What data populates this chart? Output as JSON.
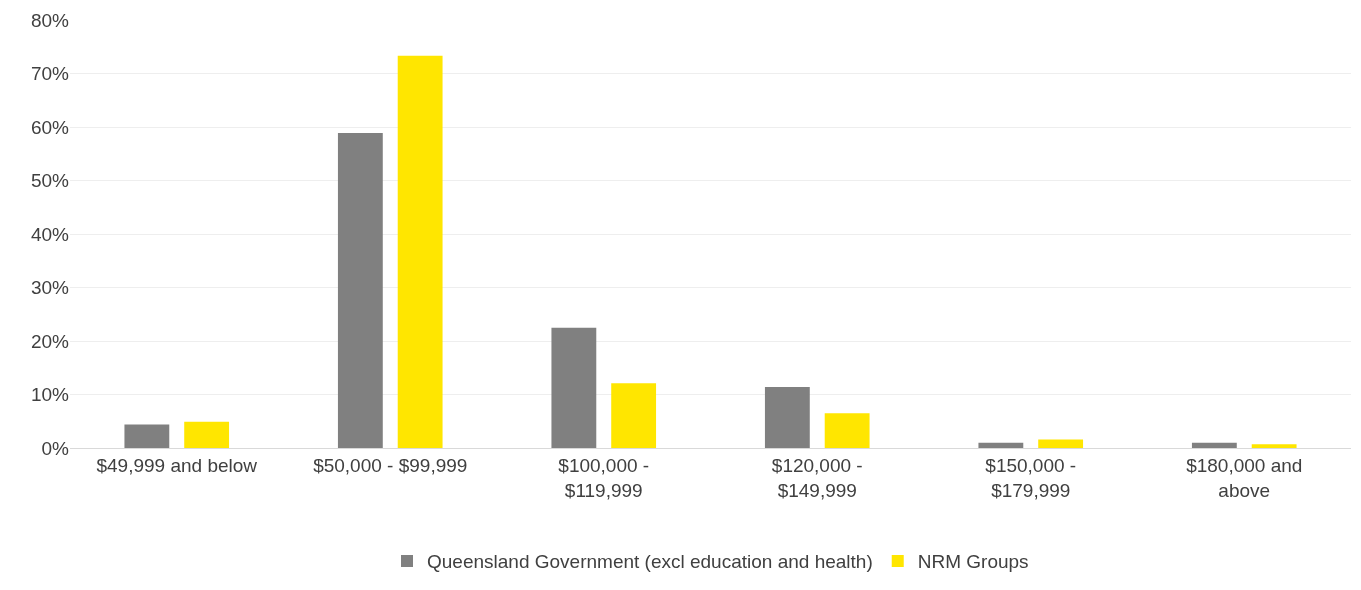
{
  "chart_data": {
    "type": "bar",
    "categories": [
      "$49,999 and below",
      "$50,000 - $99,999",
      "$100,000 - $119,999",
      "$120,000 - $149,999",
      "$150,000 - $179,999",
      "$180,000 and above"
    ],
    "series": [
      {
        "name": "Queensland Government (excl education and health)",
        "color": "#808080",
        "values": [
          4.4,
          58.9,
          22.5,
          11.4,
          1.0,
          1.0
        ]
      },
      {
        "name": "NRM Groups",
        "color": "#ffe600",
        "values": [
          4.9,
          73.3,
          12.1,
          6.5,
          1.6,
          0.7
        ]
      }
    ],
    "ylim": [
      0,
      80
    ],
    "yticks": [
      {
        "value": 0,
        "label": "0%"
      },
      {
        "value": 10,
        "label": "10%"
      },
      {
        "value": 20,
        "label": "20%"
      },
      {
        "value": 30,
        "label": "30%"
      },
      {
        "value": 40,
        "label": "40%"
      },
      {
        "value": 50,
        "label": "50%"
      },
      {
        "value": 60,
        "label": "60%"
      },
      {
        "value": 70,
        "label": "70%"
      },
      {
        "value": 80,
        "label": "80%"
      }
    ],
    "grid": "y",
    "legend": "bottom"
  }
}
